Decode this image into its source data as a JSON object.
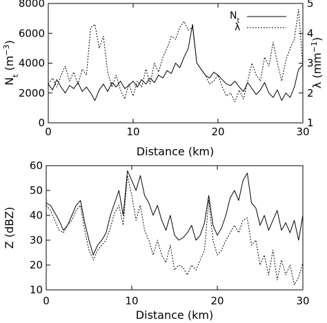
{
  "chart_data": [
    {
      "type": "line",
      "xlabel": "Distance (km)",
      "ylabel_left_main": "N",
      "ylabel_left_sub": "t",
      "ylabel_left_open": " (m",
      "ylabel_left_exp": "−3",
      "ylabel_left_close": ")",
      "ylabel_right_main": "λ (mm",
      "ylabel_right_exp": "−1",
      "ylabel_right_close": ")",
      "xlim": [
        0,
        30
      ],
      "ylim_left": [
        0,
        8000
      ],
      "ylim_right": [
        1,
        5
      ],
      "x_ticks": [
        0,
        10,
        20,
        30
      ],
      "x_tick_labels": [
        "0",
        "10",
        "20",
        "30"
      ],
      "y_left_ticks": [
        0,
        2000,
        4000,
        6000,
        8000
      ],
      "y_left_tick_labels": [
        "0",
        "2000",
        "4000",
        "6000",
        "8000"
      ],
      "y_right_ticks": [
        1,
        2,
        3,
        4,
        5
      ],
      "y_right_tick_labels": [
        "1",
        "2",
        "3",
        "4",
        "5"
      ],
      "legend": {
        "placement": "top-right",
        "entries": [
          {
            "main": "N",
            "sub": "t",
            "style": "solid"
          },
          {
            "main": "λ",
            "sub": "",
            "style": "dotted"
          }
        ]
      },
      "series": [
        {
          "axis": "left",
          "style": "solid",
          "x": [
            0,
            0.5,
            1,
            1.5,
            2,
            2.5,
            3,
            3.5,
            4,
            4.5,
            5,
            5.5,
            6,
            6.5,
            7,
            7.5,
            8,
            8.5,
            9,
            9.5,
            10,
            10.5,
            11,
            11.5,
            12,
            12.5,
            13,
            13.5,
            14,
            14.5,
            15,
            15.5,
            16,
            16.5,
            17,
            17.5,
            18,
            18.5,
            19,
            19.5,
            20,
            20.5,
            21,
            21.5,
            22,
            22.5,
            23,
            23.5,
            24,
            24.5,
            25,
            25.5,
            26,
            26.5,
            27,
            27.5,
            28,
            28.5,
            29,
            29.5,
            30
          ],
          "y": [
            2600,
            2200,
            2900,
            2400,
            2000,
            2500,
            2300,
            2700,
            2100,
            2400,
            2000,
            1500,
            2200,
            2600,
            2100,
            2700,
            2400,
            2800,
            2300,
            2500,
            2800,
            2400,
            2900,
            2600,
            3000,
            2700,
            3200,
            3000,
            3500,
            3300,
            4000,
            3700,
            4400,
            5000,
            6600,
            4000,
            3600,
            3200,
            3000,
            3400,
            3200,
            2900,
            2600,
            2500,
            2800,
            2400,
            2100,
            2700,
            2300,
            1900,
            2200,
            2700,
            2000,
            1700,
            2200,
            1500,
            2000,
            1700,
            2400,
            3600,
            3900
          ]
        },
        {
          "axis": "right",
          "style": "dotted",
          "x": [
            0,
            0.5,
            1,
            1.5,
            2,
            2.5,
            3,
            3.5,
            4,
            4.5,
            5,
            5.5,
            6,
            6.5,
            7,
            7.5,
            8,
            8.5,
            9,
            9.5,
            10,
            10.5,
            11,
            11.5,
            12,
            12.5,
            13,
            13.5,
            14,
            14.5,
            15,
            15.5,
            16,
            16.5,
            17,
            17.5,
            18,
            18.5,
            19,
            19.5,
            20,
            20.5,
            21,
            21.5,
            22,
            22.5,
            23,
            23.5,
            24,
            24.5,
            25,
            25.5,
            26,
            26.5,
            27,
            27.5,
            28,
            28.5,
            29,
            29.5,
            30
          ],
          "y": [
            2.3,
            2.5,
            2.2,
            2.6,
            2.9,
            2.4,
            2.7,
            2.3,
            2.8,
            2.6,
            4.2,
            4.3,
            3.5,
            3.9,
            2.7,
            2.2,
            2.6,
            2.1,
            1.8,
            2.3,
            1.9,
            2.4,
            2.2,
            2.8,
            2.3,
            3.0,
            2.7,
            3.2,
            3.5,
            3.9,
            3.8,
            4.2,
            4.4,
            4.1,
            4.2,
            3.0,
            2.8,
            2.6,
            2.3,
            2.4,
            2.6,
            2.2,
            1.9,
            2.0,
            1.7,
            2.1,
            1.8,
            2.4,
            3.0,
            2.6,
            2.4,
            3.2,
            2.9,
            3.7,
            3.0,
            2.4,
            3.1,
            3.5,
            3.8,
            4.8,
            2.9
          ]
        }
      ]
    },
    {
      "type": "line",
      "xlabel": "Distance (km)",
      "ylabel": "Z (dBZ)",
      "xlim": [
        0,
        30
      ],
      "ylim": [
        10,
        60
      ],
      "x_ticks": [
        0,
        10,
        20,
        30
      ],
      "x_tick_labels": [
        "0",
        "10",
        "20",
        "30"
      ],
      "y_ticks": [
        10,
        20,
        30,
        40,
        50,
        60
      ],
      "y_tick_labels": [
        "10",
        "20",
        "30",
        "40",
        "50",
        "60"
      ],
      "series": [
        {
          "style": "solid",
          "x": [
            0,
            0.5,
            1,
            1.5,
            2,
            2.5,
            3,
            3.5,
            4,
            4.5,
            5,
            5.5,
            6,
            6.5,
            7,
            7.5,
            8,
            8.5,
            9,
            9.5,
            10,
            10.5,
            11,
            11.5,
            12,
            12.5,
            13,
            13.5,
            14,
            14.5,
            15,
            15.5,
            16,
            16.5,
            17,
            17.5,
            18,
            18.5,
            19,
            19.5,
            20,
            20.5,
            21,
            21.5,
            22,
            22.5,
            23,
            23.5,
            24,
            24.5,
            25,
            25.5,
            26,
            26.5,
            27,
            27.5,
            28,
            28.5,
            29,
            29.5,
            30
          ],
          "y": [
            45,
            44,
            41,
            38,
            34,
            36,
            40,
            44,
            46,
            37,
            30,
            24,
            28,
            30,
            33,
            40,
            45,
            50,
            40,
            58,
            54,
            50,
            56,
            48,
            45,
            40,
            44,
            38,
            34,
            40,
            32,
            30,
            31,
            33,
            36,
            30,
            32,
            37,
            48,
            36,
            32,
            35,
            40,
            47,
            50,
            46,
            54,
            57,
            45,
            43,
            36,
            40,
            34,
            38,
            42,
            34,
            37,
            33,
            38,
            30,
            40
          ]
        },
        {
          "style": "dotted",
          "x": [
            0,
            0.5,
            1,
            1.5,
            2,
            2.5,
            3,
            3.5,
            4,
            4.5,
            5,
            5.5,
            6,
            6.5,
            7,
            7.5,
            8,
            8.5,
            9,
            9.5,
            10,
            10.5,
            11,
            11.5,
            12,
            12.5,
            13,
            13.5,
            14,
            14.5,
            15,
            15.5,
            16,
            16.5,
            17,
            17.5,
            18,
            18.5,
            19,
            19.5,
            20,
            20.5,
            21,
            21.5,
            22,
            22.5,
            23,
            23.5,
            24,
            24.5,
            25,
            25.5,
            26,
            26.5,
            27,
            27.5,
            28,
            28.5,
            29,
            29.5,
            30
          ],
          "y": [
            44,
            42,
            38,
            34,
            33,
            36,
            38,
            42,
            44,
            34,
            26,
            22,
            26,
            28,
            30,
            35,
            41,
            44,
            36,
            56,
            48,
            38,
            44,
            34,
            30,
            24,
            30,
            24,
            21,
            28,
            18,
            20,
            19,
            16,
            20,
            18,
            22,
            26,
            46,
            30,
            24,
            26,
            30,
            33,
            36,
            33,
            38,
            39,
            28,
            30,
            20,
            24,
            16,
            26,
            14,
            22,
            16,
            20,
            12,
            15,
            21
          ]
        }
      ]
    }
  ]
}
